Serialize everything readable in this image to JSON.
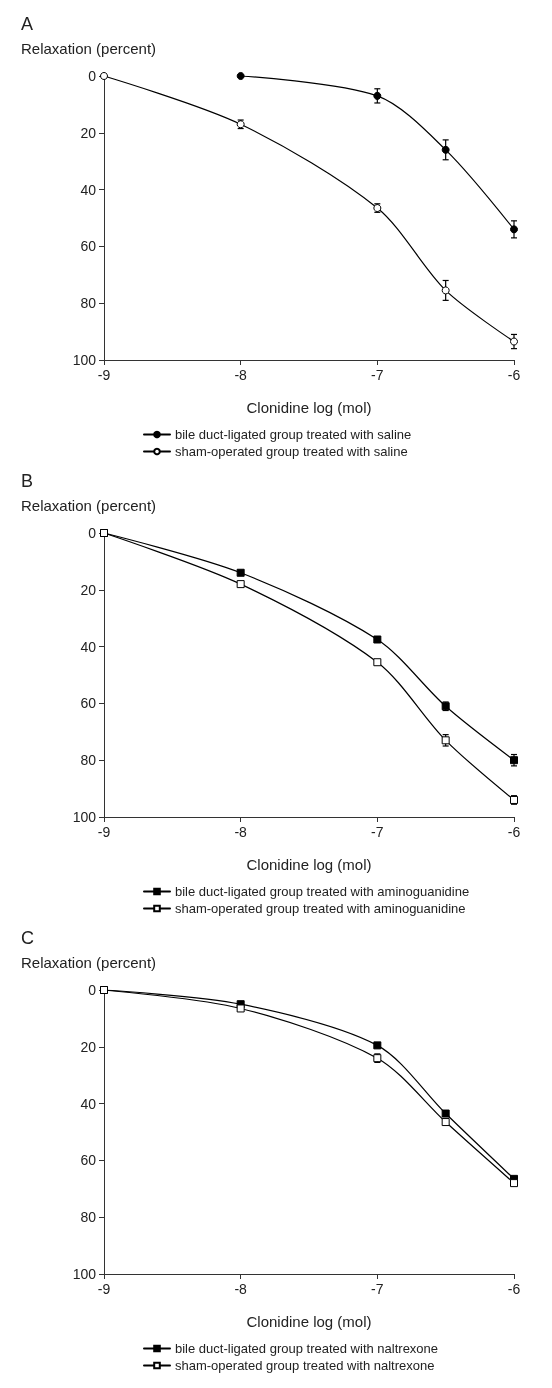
{
  "chart_data": [
    {
      "type": "line",
      "title": "A",
      "ylabel": "Relaxation (percent)",
      "xlabel": "Clonidine log (mol)",
      "xlim": [
        -9,
        -6
      ],
      "xticks": [
        -9,
        -8,
        -7,
        -6
      ],
      "ylim": [
        100,
        0
      ],
      "yticks": [
        0,
        20,
        40,
        60,
        80,
        100
      ],
      "grid": false,
      "legend": "bottom",
      "line_style": "solid",
      "series": [
        {
          "name": "bile duct-ligated group treated with saline",
          "color": "#000000",
          "marker": "circle",
          "x": [
            -8,
            -7,
            -6.5,
            -6
          ],
          "values": [
            0,
            7,
            26,
            54
          ],
          "errors": [
            null,
            2.5,
            3.5,
            3
          ]
        },
        {
          "name": "sham-operated group treated with saline",
          "color": "#000000",
          "marker": "circle",
          "x": [
            -9,
            -8,
            -7,
            -6.5,
            -6
          ],
          "values": [
            0,
            17,
            46.5,
            75.5,
            93.5
          ],
          "errors": [
            null,
            1.5,
            1.5,
            3.5,
            2.5
          ]
        }
      ]
    },
    {
      "type": "line",
      "title": "B",
      "ylabel": "Relaxation (percent)",
      "xlabel": "Clonidine log (mol)",
      "xlim": [
        -9,
        -6
      ],
      "xticks": [
        -9,
        -8,
        -7,
        -6
      ],
      "ylim": [
        100,
        0
      ],
      "yticks": [
        0,
        20,
        40,
        60,
        80,
        100
      ],
      "grid": false,
      "legend": "bottom",
      "line_style": "solid",
      "series": [
        {
          "name": "bile duct-ligated group treated with aminoguanidine",
          "color": "#000000",
          "marker": "square",
          "x": [
            -9,
            -8,
            -7,
            -6.5,
            -6
          ],
          "values": [
            0,
            14,
            37.5,
            61,
            80
          ],
          "errors": [
            null,
            null,
            null,
            1.5,
            2
          ]
        },
        {
          "name": "sham-operated group treated with aminoguanidine",
          "color": "#000000",
          "marker": "square",
          "x": [
            -9,
            -8,
            -7,
            -6.5,
            -6
          ],
          "values": [
            0,
            18,
            45.5,
            73,
            94
          ],
          "errors": [
            null,
            null,
            null,
            2,
            1.5
          ]
        }
      ]
    },
    {
      "type": "line",
      "title": "C",
      "ylabel": "Relaxation (percent)",
      "xlabel": "Clonidine log (mol)",
      "xlim": [
        -9,
        -6
      ],
      "xticks": [
        -9,
        -8,
        -7,
        -6
      ],
      "ylim": [
        100,
        0
      ],
      "yticks": [
        0,
        20,
        40,
        60,
        80,
        100
      ],
      "grid": false,
      "legend": "bottom",
      "line_style": "solid",
      "series": [
        {
          "name": "bile duct-ligated group treated with naltrexone",
          "color": "#000000",
          "marker": "square",
          "x": [
            -9,
            -8,
            -7,
            -6.5,
            -6
          ],
          "values": [
            0,
            5,
            19.5,
            43.5,
            66.5
          ],
          "errors": [
            null,
            null,
            null,
            1,
            0.8
          ]
        },
        {
          "name": "sham-operated group treated with naltrexone",
          "color": "#000000",
          "marker": "square",
          "x": [
            -9,
            -8,
            -7,
            -6.5,
            -6
          ],
          "values": [
            0,
            6.5,
            24,
            46.5,
            68
          ],
          "errors": [
            null,
            null,
            1.5,
            null,
            0.8
          ]
        }
      ]
    }
  ]
}
